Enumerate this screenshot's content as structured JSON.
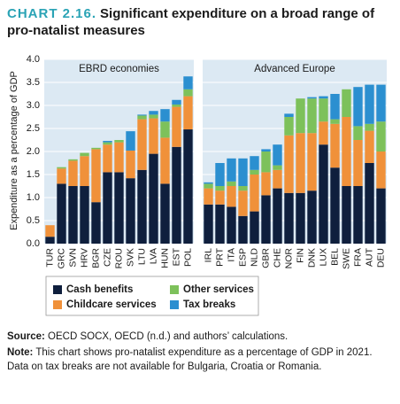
{
  "chart_data": {
    "type": "bar",
    "stacked": true,
    "label": "CHART 2.16.",
    "title": "Significant expenditure on a broad range of pro-natalist measures",
    "y_label": "Expenditure as a percentage of GDP",
    "ylim": [
      0,
      4
    ],
    "yticks": [
      {
        "value": 0,
        "label": "0.0"
      },
      0.5,
      {
        "value": 1,
        "label": "1.0"
      },
      1.5,
      {
        "value": 2,
        "label": "2.0"
      },
      2.5,
      {
        "value": 3,
        "label": "3.0"
      },
      3.5,
      {
        "value": 4,
        "label": "4.0"
      }
    ],
    "grid": true,
    "panels": [
      {
        "title": "EBRD economies",
        "categories": [
          "TUR",
          "GRC",
          "SVN",
          "HRV",
          "BGR",
          "CZE",
          "ROU",
          "SVK",
          "LTU",
          "LVA",
          "HUN",
          "EST",
          "POL"
        ]
      },
      {
        "title": "Advanced Europe",
        "categories": [
          "IRL",
          "PRT",
          "ITA",
          "ESP",
          "NLD",
          "GBR",
          "CHE",
          "NOR",
          "FIN",
          "DNK",
          "LUX",
          "BEL",
          "SWE",
          "FRA",
          "AUT",
          "DEU"
        ]
      }
    ],
    "series": [
      {
        "name": "Cash benefits",
        "color": "#0f1f3d",
        "values": [
          [
            0.15,
            1.3,
            1.25,
            1.25,
            0.9,
            1.55,
            1.55,
            1.42,
            1.6,
            1.95,
            1.3,
            2.1,
            2.48
          ],
          [
            0.85,
            0.85,
            0.8,
            0.6,
            0.7,
            1.05,
            1.2,
            1.1,
            1.1,
            1.15,
            2.15,
            1.65,
            1.25,
            1.25,
            1.75,
            1.2
          ]
        ]
      },
      {
        "name": "Childcare services",
        "color": "#f0913a",
        "values": [
          [
            0.25,
            0.33,
            0.55,
            0.65,
            1.15,
            0.6,
            0.65,
            0.6,
            1.1,
            0.77,
            1.0,
            0.87,
            0.72
          ],
          [
            0.35,
            0.3,
            0.45,
            0.55,
            0.8,
            0.5,
            0.4,
            1.25,
            1.3,
            1.25,
            0.5,
            0.95,
            1.5,
            1.0,
            0.7,
            0.8
          ]
        ]
      },
      {
        "name": "Other services",
        "color": "#7dc15b",
        "values": [
          [
            0,
            0.03,
            0.03,
            0.07,
            0.03,
            0.05,
            0.05,
            0,
            0.08,
            0.08,
            0.35,
            0.05,
            0.15
          ],
          [
            0.1,
            0.1,
            0.1,
            0.1,
            0.1,
            0.45,
            0.1,
            0.4,
            0.75,
            0.75,
            0.5,
            0.1,
            0.6,
            0.3,
            0.15,
            0.65
          ]
        ]
      },
      {
        "name": "Tax breaks",
        "color": "#2b8fd0",
        "values": [
          [
            0,
            0,
            0,
            0,
            0,
            0.03,
            0,
            0.42,
            0.02,
            0.08,
            0.27,
            0.1,
            0.28
          ],
          [
            0.03,
            0.5,
            0.5,
            0.6,
            0.3,
            0.05,
            0.45,
            0.07,
            0,
            0.03,
            0.05,
            0.55,
            0,
            0.85,
            0.85,
            0.8
          ]
        ]
      }
    ]
  },
  "footer": {
    "source_label": "Source:",
    "source": "OECD SOCX, OECD (n.d.) and authors’ calculations.",
    "note_label": "Note:",
    "note": "This chart shows pro-natalist expenditure as a percentage of GDP in 2021. Data on tax breaks are not available for Bulgaria, Croatia or Romania."
  }
}
